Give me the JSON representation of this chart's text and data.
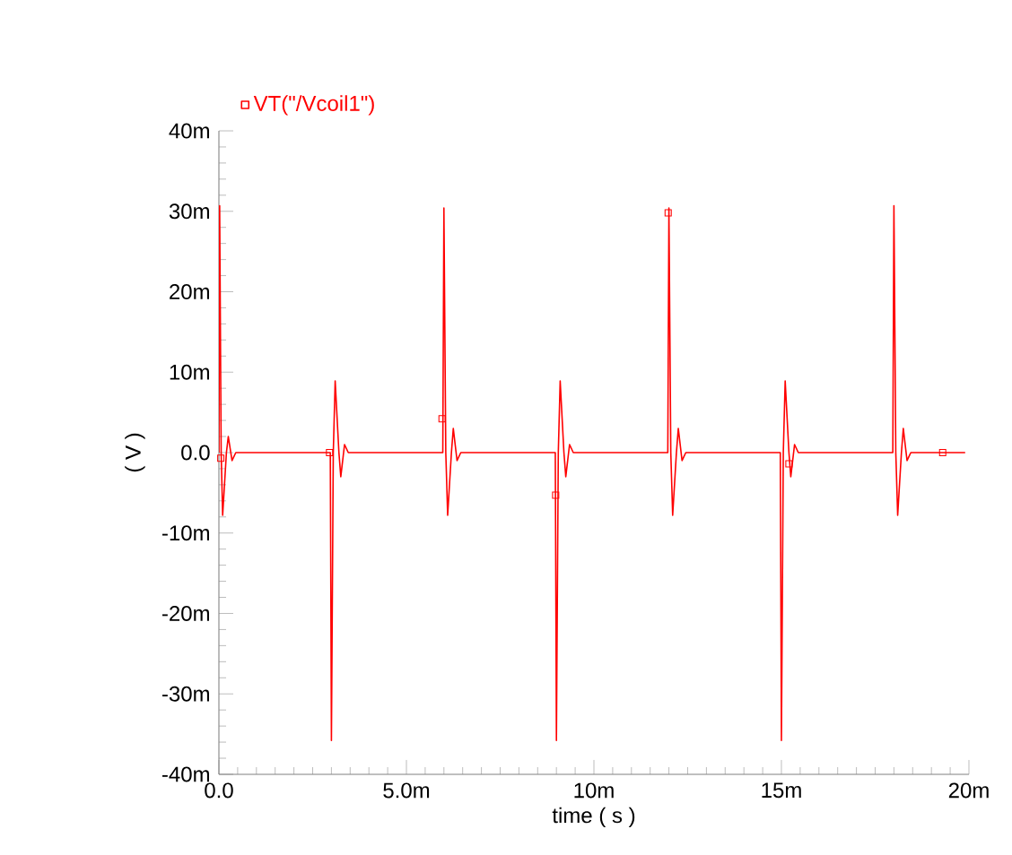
{
  "chart_data": {
    "type": "line",
    "xlabel": "time ( s )",
    "ylabel": "( V )",
    "legend": "top left",
    "xlim": [
      0,
      20
    ],
    "ylim": [
      -40,
      40
    ],
    "xticks": [
      {
        "value": 0,
        "label": "0.0"
      },
      {
        "value": 5,
        "label": "5.0m"
      },
      {
        "value": 10,
        "label": "10m"
      },
      {
        "value": 15,
        "label": "15m"
      },
      {
        "value": 20,
        "label": "20m"
      }
    ],
    "yticks": [
      {
        "value": -40,
        "label": "-40m"
      },
      {
        "value": -30,
        "label": "-30m"
      },
      {
        "value": -20,
        "label": "-20m"
      },
      {
        "value": -10,
        "label": "-10m"
      },
      {
        "value": 0,
        "label": "0.0"
      },
      {
        "value": 10,
        "label": "10m"
      },
      {
        "value": 20,
        "label": "20m"
      },
      {
        "value": 30,
        "label": "30m"
      },
      {
        "value": 40,
        "label": "40m"
      }
    ],
    "series": [
      {
        "name": "VT(\"/Vcoil1\")",
        "color": "#ff0000",
        "x": [
          0,
          0.02,
          0.06,
          0.1,
          0.2,
          0.25,
          0.35,
          0.45,
          2.97,
          3.0,
          3.05,
          3.1,
          3.2,
          3.25,
          3.35,
          3.45,
          5.97,
          6.0,
          6.05,
          6.1,
          6.2,
          6.25,
          6.35,
          6.45,
          8.97,
          9.0,
          9.05,
          9.1,
          9.2,
          9.25,
          9.35,
          9.45,
          11.97,
          12.0,
          12.05,
          12.1,
          12.2,
          12.25,
          12.35,
          12.45,
          14.97,
          15.0,
          15.05,
          15.1,
          15.2,
          15.25,
          15.35,
          15.45,
          17.97,
          18.0,
          18.05,
          18.1,
          18.2,
          18.25,
          18.35,
          18.45,
          19.9
        ],
        "values": [
          0,
          30.7,
          0,
          -7.8,
          0,
          2,
          -1,
          0,
          0,
          -35.8,
          0,
          8.9,
          0,
          -3,
          1,
          0,
          0,
          30.4,
          0,
          -7.8,
          0,
          3,
          -1,
          0,
          0,
          -35.8,
          0,
          8.9,
          0,
          -3,
          1,
          0,
          0,
          30.4,
          0,
          -7.8,
          0,
          3,
          -1,
          0,
          0,
          -35.8,
          0,
          8.9,
          0,
          -3,
          1,
          0,
          0,
          30.7,
          0,
          -7.8,
          0,
          3,
          -1,
          0,
          0
        ]
      },
      {
        "type": "scatter",
        "color": "#ff0000",
        "marker": "square",
        "x": [
          0.05,
          2.95,
          5.95,
          8.98,
          11.98,
          15.2,
          19.3
        ],
        "values": [
          -0.7,
          0,
          4.2,
          -5.3,
          29.8,
          -1.4,
          0
        ]
      }
    ]
  }
}
